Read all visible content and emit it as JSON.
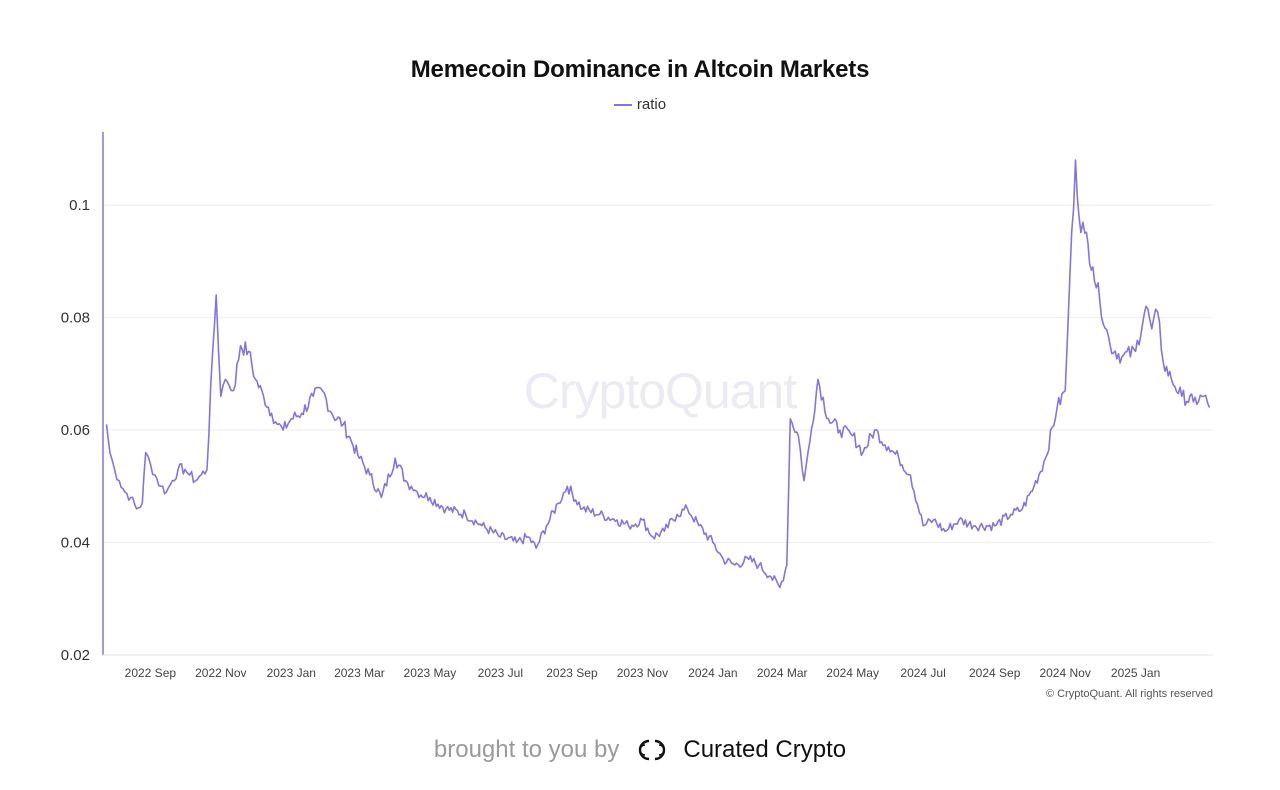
{
  "chart_data": {
    "type": "line",
    "title": "Memecoin Dominance in Altcoin Markets",
    "xlabel": "",
    "ylabel": "",
    "x_ticks": [
      "2022 Sep",
      "2022 Nov",
      "2023 Jan",
      "2023 Mar",
      "2023 May",
      "2023 Jul",
      "2023 Sep",
      "2023 Nov",
      "2024 Jan",
      "2024 Mar",
      "2024 May",
      "2024 Jul",
      "2024 Sep",
      "2024 Nov",
      "2025 Jan"
    ],
    "y_ticks": [
      "0.02",
      "0.04",
      "0.06",
      "0.08",
      "0.1"
    ],
    "ylim": [
      0.02,
      0.113
    ],
    "xlim": [
      "2022-07-22",
      "2025-03-09"
    ],
    "grid": true,
    "legend_position": "top-center",
    "series": [
      {
        "name": "ratio",
        "color": "#8476d6",
        "x": [
          "2022-07-25",
          "2022-07-28",
          "2022-08-01",
          "2022-08-05",
          "2022-08-10",
          "2022-08-15",
          "2022-08-20",
          "2022-08-25",
          "2022-08-28",
          "2022-09-01",
          "2022-09-05",
          "2022-09-10",
          "2022-09-15",
          "2022-09-20",
          "2022-09-25",
          "2022-10-01",
          "2022-10-05",
          "2022-10-10",
          "2022-10-15",
          "2022-10-20",
          "2022-10-25",
          "2022-10-28",
          "2022-11-01",
          "2022-11-03",
          "2022-11-05",
          "2022-11-08",
          "2022-11-12",
          "2022-11-18",
          "2022-11-25",
          "2022-12-01",
          "2022-12-08",
          "2022-12-15",
          "2022-12-20",
          "2022-12-25",
          "2023-01-01",
          "2023-01-10",
          "2023-01-20",
          "2023-01-28",
          "2023-02-05",
          "2023-02-15",
          "2023-02-22",
          "2023-03-01",
          "2023-03-10",
          "2023-03-20",
          "2023-04-01",
          "2023-04-10",
          "2023-04-15",
          "2023-04-20",
          "2023-05-01",
          "2023-05-15",
          "2023-06-01",
          "2023-06-15",
          "2023-07-01",
          "2023-07-15",
          "2023-07-25",
          "2023-08-01",
          "2023-08-10",
          "2023-08-20",
          "2023-08-28",
          "2023-09-10",
          "2023-09-25",
          "2023-10-10",
          "2023-10-20",
          "2023-11-01",
          "2023-11-10",
          "2023-11-20",
          "2023-12-01",
          "2023-12-10",
          "2023-12-20",
          "2024-01-01",
          "2024-01-10",
          "2024-01-20",
          "2024-02-01",
          "2024-02-10",
          "2024-02-20",
          "2024-02-28",
          "2024-03-05",
          "2024-03-08",
          "2024-03-15",
          "2024-03-20",
          "2024-03-25",
          "2024-04-01",
          "2024-04-10",
          "2024-04-20",
          "2024-05-01",
          "2024-05-10",
          "2024-05-20",
          "2024-06-01",
          "2024-06-10",
          "2024-06-20",
          "2024-07-01",
          "2024-07-10",
          "2024-07-20",
          "2024-08-01",
          "2024-08-15",
          "2024-09-01",
          "2024-09-15",
          "2024-09-25",
          "2024-10-05",
          "2024-10-15",
          "2024-10-25",
          "2024-11-01",
          "2024-11-05",
          "2024-11-10",
          "2024-11-13",
          "2024-11-18",
          "2024-11-25",
          "2024-12-01",
          "2024-12-10",
          "2024-12-20",
          "2025-01-01",
          "2025-01-10",
          "2025-01-15",
          "2025-01-20",
          "2025-01-25",
          "2025-02-01",
          "2025-02-10",
          "2025-02-20",
          "2025-03-01",
          "2025-03-06"
        ],
        "values": [
          0.061,
          0.056,
          0.053,
          0.051,
          0.049,
          0.048,
          0.046,
          0.047,
          0.056,
          0.054,
          0.052,
          0.05,
          0.049,
          0.051,
          0.053,
          0.053,
          0.052,
          0.051,
          0.052,
          0.053,
          0.074,
          0.084,
          0.066,
          0.068,
          0.069,
          0.068,
          0.067,
          0.075,
          0.074,
          0.069,
          0.066,
          0.063,
          0.061,
          0.06,
          0.062,
          0.063,
          0.066,
          0.067,
          0.063,
          0.061,
          0.058,
          0.055,
          0.052,
          0.048,
          0.055,
          0.051,
          0.05,
          0.049,
          0.048,
          0.046,
          0.045,
          0.043,
          0.041,
          0.04,
          0.041,
          0.039,
          0.043,
          0.047,
          0.05,
          0.046,
          0.045,
          0.044,
          0.043,
          0.044,
          0.041,
          0.042,
          0.045,
          0.046,
          0.043,
          0.04,
          0.037,
          0.036,
          0.037,
          0.036,
          0.034,
          0.032,
          0.036,
          0.062,
          0.059,
          0.051,
          0.058,
          0.069,
          0.062,
          0.06,
          0.059,
          0.056,
          0.06,
          0.057,
          0.055,
          0.052,
          0.043,
          0.044,
          0.042,
          0.044,
          0.043,
          0.043,
          0.045,
          0.046,
          0.05,
          0.055,
          0.064,
          0.067,
          0.087,
          0.108,
          0.098,
          0.095,
          0.089,
          0.083,
          0.075,
          0.073,
          0.074,
          0.082,
          0.078,
          0.081,
          0.072,
          0.069,
          0.066,
          0.065,
          0.066,
          0.064
        ]
      }
    ]
  },
  "watermark": "CryptoQuant",
  "copyright": "© CryptoQuant. All rights reserved",
  "footer": {
    "prefix": "brought to you by",
    "brand": "Curated Crypto",
    "logo_icon": "double-c-logo-icon"
  }
}
